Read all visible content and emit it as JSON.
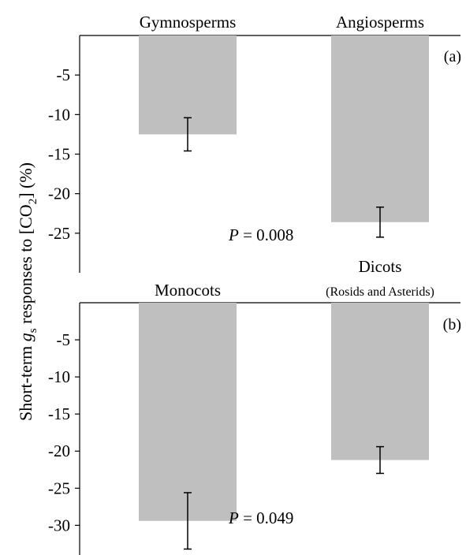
{
  "ylabel": {
    "pre": "Short-term ",
    "g": "g",
    "s_sub": "s",
    "mid": " responses to [CO",
    "two_sub": "2",
    "post": "] (%)"
  },
  "chart_data": [
    {
      "type": "bar",
      "panel_label": "(a)",
      "categories": [
        "Gymnosperms",
        "Angiosperms"
      ],
      "category_sublabels": [
        "",
        ""
      ],
      "values": [
        -12.5,
        -23.6
      ],
      "errors": [
        2.1,
        1.9
      ],
      "ylim": [
        -30,
        0
      ],
      "yticks": [
        -5,
        -10,
        -15,
        -20,
        -25
      ],
      "tick_labels": [
        "-5",
        "-10",
        "-15",
        "-20",
        "-25"
      ],
      "p_label": "P",
      "p_value": " = 0.008",
      "bar_color": "#bfbfbf"
    },
    {
      "type": "bar",
      "panel_label": "(b)",
      "categories": [
        "Monocots",
        "Dicots"
      ],
      "category_sublabels": [
        "",
        "(Rosids and Asterids)"
      ],
      "values": [
        -29.4,
        -21.2
      ],
      "errors": [
        3.8,
        1.8
      ],
      "ylim": [
        -34,
        0
      ],
      "yticks": [
        -5,
        -10,
        -15,
        -20,
        -25,
        -30
      ],
      "tick_labels": [
        "-5",
        "-10",
        "-15",
        "-20",
        "-25",
        "-30"
      ],
      "p_label": "P",
      "p_value": " = 0.049",
      "bar_color": "#bfbfbf"
    }
  ]
}
